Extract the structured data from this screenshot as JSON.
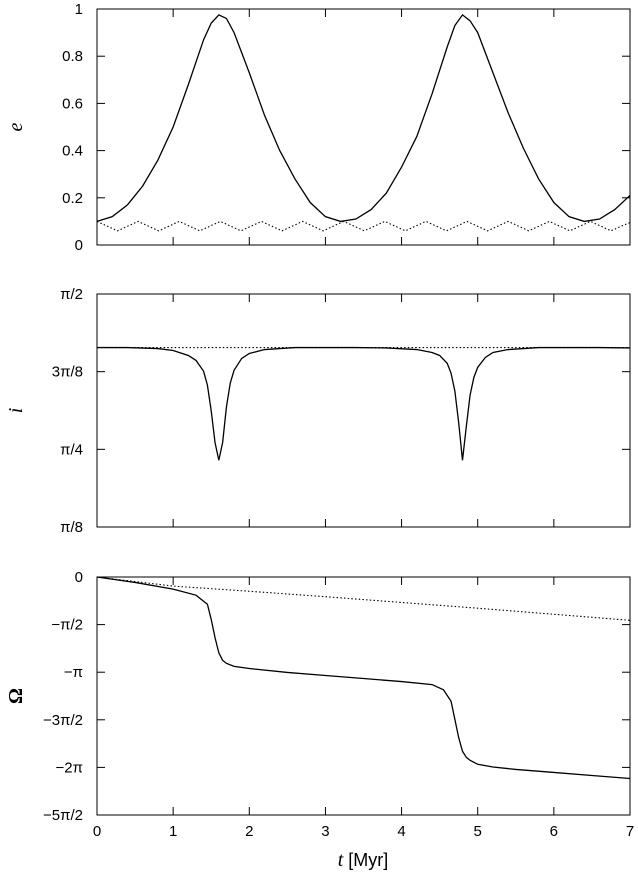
{
  "chart_data": [
    {
      "type": "line",
      "ylabel": "e",
      "xlim": [
        0,
        7
      ],
      "ylim": [
        0,
        1
      ],
      "yticks": [
        0,
        0.2,
        0.4,
        0.6,
        0.8,
        1
      ],
      "ytick_labels": [
        "0",
        "0.2",
        "0.4",
        "0.6",
        "0.8",
        "1"
      ],
      "series": [
        {
          "style": "solid",
          "x": [
            0,
            0.2,
            0.4,
            0.6,
            0.8,
            1.0,
            1.2,
            1.4,
            1.5,
            1.6,
            1.7,
            1.8,
            2.0,
            2.2,
            2.4,
            2.6,
            2.8,
            3.0,
            3.2,
            3.4,
            3.6,
            3.8,
            4.0,
            4.2,
            4.4,
            4.6,
            4.7,
            4.8,
            4.9,
            5.0,
            5.2,
            5.4,
            5.6,
            5.8,
            6.0,
            6.2,
            6.4,
            6.6,
            6.8,
            7.0
          ],
          "values": [
            0.1,
            0.12,
            0.17,
            0.25,
            0.36,
            0.5,
            0.68,
            0.87,
            0.94,
            0.975,
            0.96,
            0.9,
            0.73,
            0.55,
            0.4,
            0.28,
            0.18,
            0.12,
            0.1,
            0.11,
            0.15,
            0.22,
            0.33,
            0.46,
            0.64,
            0.84,
            0.93,
            0.975,
            0.95,
            0.9,
            0.73,
            0.56,
            0.41,
            0.28,
            0.18,
            0.12,
            0.1,
            0.11,
            0.15,
            0.21
          ]
        },
        {
          "style": "dotted",
          "description": "small oscillation",
          "x": [
            0,
            0.135,
            0.27,
            0.405,
            0.54,
            0.675,
            0.81,
            0.945,
            1.08,
            1.215,
            1.35,
            1.485,
            1.62,
            1.755,
            1.89,
            2.025,
            2.16,
            2.295,
            2.43,
            2.565,
            2.7,
            2.835,
            2.97,
            3.105,
            3.24,
            3.375,
            3.51,
            3.645,
            3.78,
            3.915,
            4.05,
            4.185,
            4.32,
            4.455,
            4.59,
            4.725,
            4.86,
            4.995,
            5.13,
            5.265,
            5.4,
            5.535,
            5.67,
            5.805,
            5.94,
            6.075,
            6.21,
            6.345,
            6.48,
            6.615,
            6.75,
            6.885,
            7.0
          ],
          "values": [
            0.1,
            0.08,
            0.06,
            0.08,
            0.1,
            0.08,
            0.06,
            0.08,
            0.1,
            0.08,
            0.06,
            0.08,
            0.1,
            0.08,
            0.06,
            0.08,
            0.1,
            0.08,
            0.06,
            0.08,
            0.1,
            0.08,
            0.06,
            0.08,
            0.1,
            0.08,
            0.06,
            0.08,
            0.1,
            0.08,
            0.06,
            0.08,
            0.1,
            0.08,
            0.06,
            0.08,
            0.1,
            0.08,
            0.06,
            0.08,
            0.1,
            0.08,
            0.06,
            0.08,
            0.1,
            0.08,
            0.06,
            0.08,
            0.1,
            0.08,
            0.06,
            0.08,
            0.095
          ]
        }
      ]
    },
    {
      "type": "line",
      "ylabel": "i",
      "xlim": [
        0,
        7
      ],
      "ylim": [
        0.3927,
        1.5708
      ],
      "yticks": [
        0.3927,
        0.7854,
        1.1781,
        1.5708
      ],
      "ytick_labels": [
        "π/8",
        "π/4",
        "3π/8",
        "π/2"
      ],
      "series": [
        {
          "style": "solid",
          "x": [
            0,
            0.4,
            0.8,
            1.0,
            1.2,
            1.3,
            1.4,
            1.45,
            1.5,
            1.55,
            1.6,
            1.65,
            1.7,
            1.75,
            1.8,
            1.9,
            2.0,
            2.2,
            2.6,
            3.0,
            3.4,
            3.8,
            4.2,
            4.4,
            4.5,
            4.6,
            4.65,
            4.7,
            4.75,
            4.8,
            4.85,
            4.9,
            4.95,
            5.0,
            5.1,
            5.2,
            5.4,
            5.8,
            6.2,
            6.6,
            7.0
          ],
          "values": [
            1.3,
            1.3,
            1.295,
            1.285,
            1.26,
            1.235,
            1.18,
            1.11,
            0.98,
            0.82,
            0.73,
            0.82,
            1.0,
            1.12,
            1.185,
            1.245,
            1.27,
            1.29,
            1.3,
            1.3,
            1.3,
            1.298,
            1.29,
            1.275,
            1.26,
            1.22,
            1.17,
            1.08,
            0.92,
            0.73,
            0.9,
            1.06,
            1.15,
            1.2,
            1.25,
            1.275,
            1.29,
            1.3,
            1.3,
            1.3,
            1.298
          ]
        },
        {
          "style": "dotted",
          "x": [
            0,
            7
          ],
          "values": [
            1.3,
            1.3
          ]
        }
      ]
    },
    {
      "type": "line",
      "ylabel": "Ω",
      "xlabel_var": "t",
      "xlabel_unit": "[Myr]",
      "xlim": [
        0,
        7
      ],
      "ylim": [
        -7.854,
        0
      ],
      "xticks": [
        0,
        1,
        2,
        3,
        4,
        5,
        6,
        7
      ],
      "xtick_labels": [
        "0",
        "1",
        "2",
        "3",
        "4",
        "5",
        "6",
        "7"
      ],
      "yticks": [
        0,
        -1.5708,
        -3.1416,
        -4.7124,
        -6.2832,
        -7.854
      ],
      "ytick_labels": [
        "0",
        "−π/2",
        "−π",
        "−3π/2",
        "−2π",
        "−5π/2"
      ],
      "series": [
        {
          "style": "solid",
          "x": [
            0,
            0.5,
            1.0,
            1.3,
            1.45,
            1.5,
            1.55,
            1.6,
            1.65,
            1.7,
            1.8,
            2.0,
            2.5,
            3.0,
            3.5,
            4.0,
            4.4,
            4.55,
            4.65,
            4.7,
            4.75,
            4.8,
            4.85,
            4.9,
            5.0,
            5.2,
            5.5,
            6.0,
            6.5,
            7.0
          ],
          "values": [
            0,
            -0.18,
            -0.4,
            -0.6,
            -0.9,
            -1.4,
            -2.0,
            -2.5,
            -2.75,
            -2.85,
            -2.95,
            -3.02,
            -3.15,
            -3.25,
            -3.35,
            -3.45,
            -3.55,
            -3.72,
            -4.1,
            -4.7,
            -5.3,
            -5.75,
            -5.95,
            -6.05,
            -6.18,
            -6.27,
            -6.35,
            -6.45,
            -6.55,
            -6.65
          ]
        },
        {
          "style": "dotted",
          "x": [
            0,
            1,
            2,
            3,
            4,
            5,
            6,
            7
          ],
          "values": [
            0,
            -0.3,
            -0.47,
            -0.65,
            -0.84,
            -1.03,
            -1.23,
            -1.43
          ]
        }
      ]
    }
  ]
}
